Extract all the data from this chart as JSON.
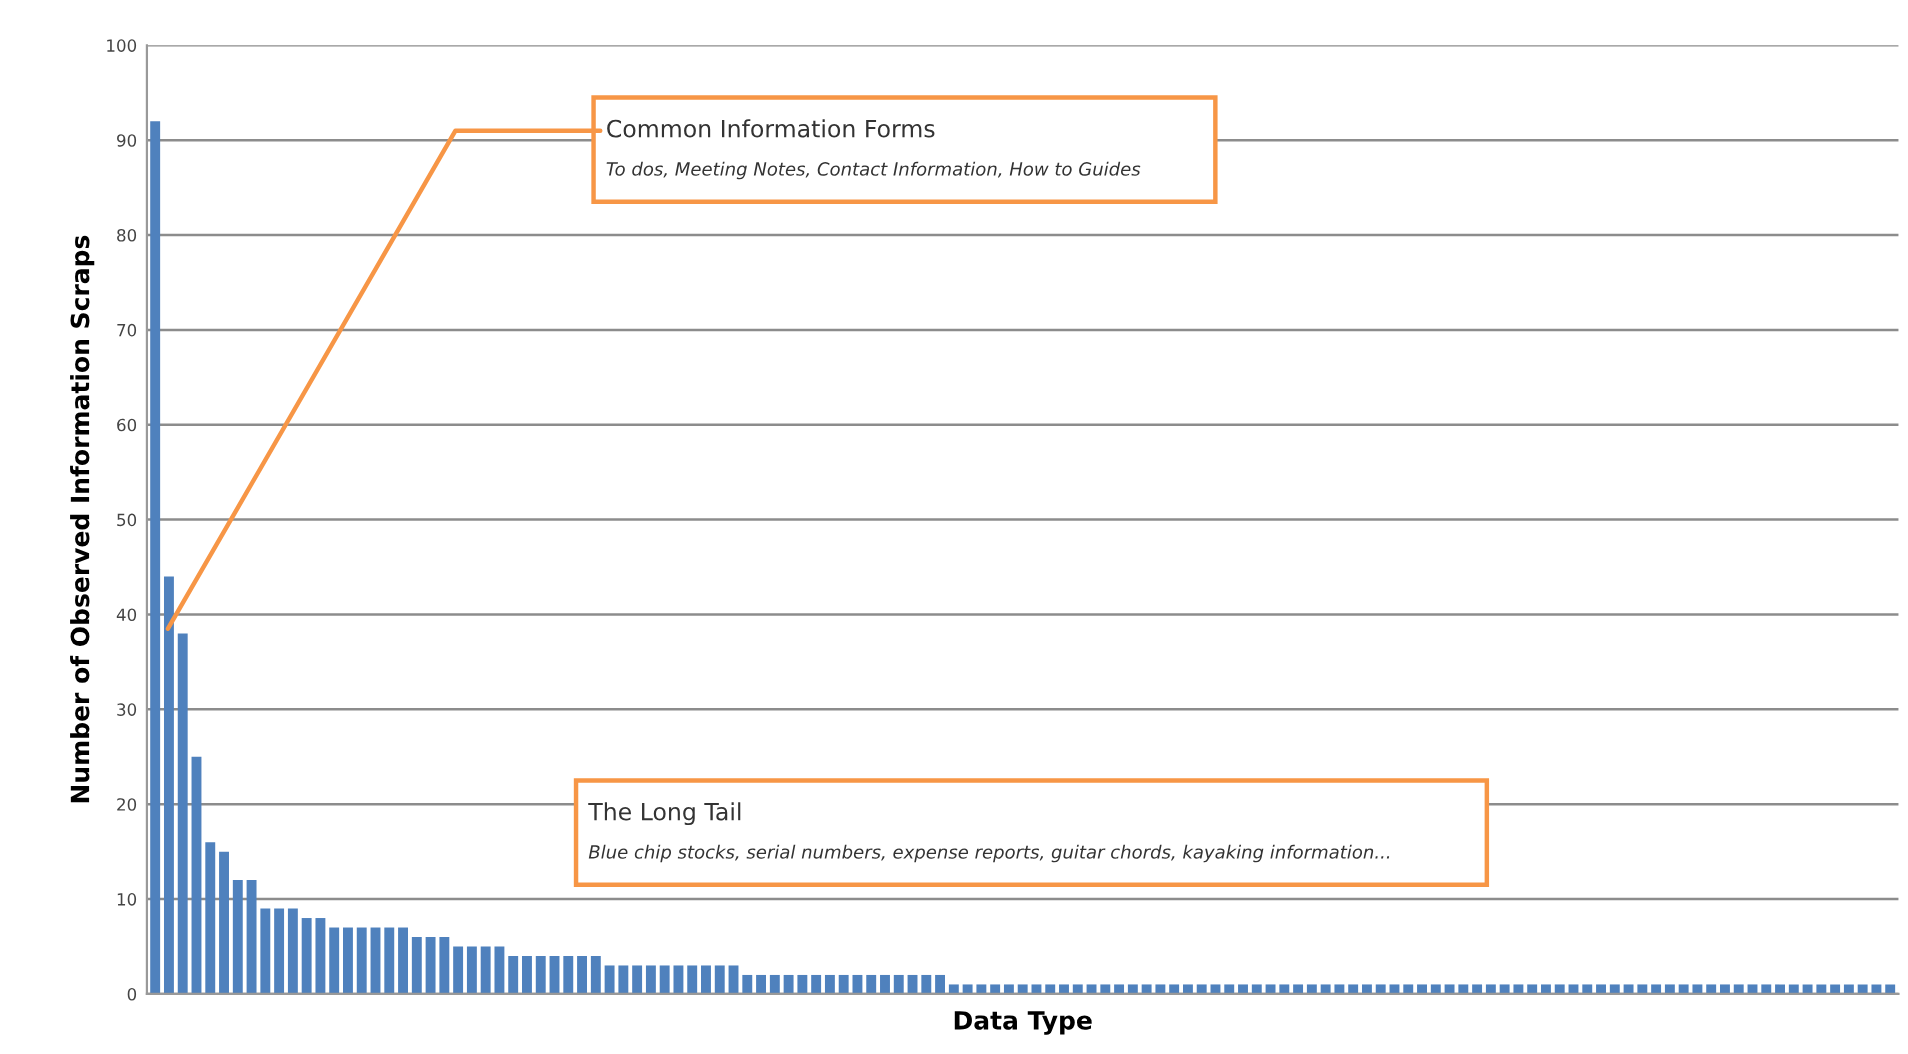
{
  "chart_data": {
    "type": "bar",
    "xlabel": "Data Type",
    "ylabel": "Number of Observed Information Scraps",
    "categories": [
      null,
      null,
      null,
      null,
      null,
      null,
      null,
      null,
      null,
      null,
      null,
      null,
      null,
      null,
      null,
      null,
      null,
      null,
      null,
      null,
      null,
      null,
      null,
      null,
      null,
      null,
      null,
      null,
      null,
      null,
      null,
      null,
      null,
      null,
      null,
      null,
      null,
      null,
      null,
      null,
      null,
      null,
      null,
      null,
      null,
      null,
      null,
      null,
      null,
      null,
      null,
      null,
      null,
      null,
      null,
      null,
      null,
      null,
      null,
      null,
      null,
      null,
      null,
      null,
      null,
      null,
      null,
      null,
      null,
      null,
      null,
      null,
      null,
      null,
      null,
      null,
      null,
      null,
      null,
      null,
      null,
      null,
      null,
      null,
      null,
      null,
      null,
      null,
      null,
      null,
      null,
      null,
      null,
      null,
      null,
      null,
      null,
      null,
      null,
      null,
      null,
      null,
      null,
      null,
      null,
      null,
      null,
      null,
      null,
      null,
      null,
      null,
      null,
      null,
      null,
      null,
      null,
      null,
      null,
      null,
      null,
      null,
      null,
      null,
      null,
      null,
      null
    ],
    "values": [
      92,
      44,
      38,
      25,
      16,
      15,
      12,
      12,
      9,
      9,
      9,
      8,
      8,
      7,
      7,
      7,
      7,
      7,
      7,
      6,
      6,
      6,
      5,
      5,
      5,
      5,
      4,
      4,
      4,
      4,
      4,
      4,
      4,
      3,
      3,
      3,
      3,
      3,
      3,
      3,
      3,
      3,
      3,
      2,
      2,
      2,
      2,
      2,
      2,
      2,
      2,
      2,
      2,
      2,
      2,
      2,
      2,
      2,
      1,
      1,
      1,
      1,
      1,
      1,
      1,
      1,
      1,
      1,
      1,
      1,
      1,
      1,
      1,
      1,
      1,
      1,
      1,
      1,
      1,
      1,
      1,
      1,
      1,
      1,
      1,
      1,
      1,
      1,
      1,
      1,
      1,
      1,
      1,
      1,
      1,
      1,
      1,
      1,
      1,
      1,
      1,
      1,
      1,
      1,
      1,
      1,
      1,
      1,
      1,
      1,
      1,
      1,
      1,
      1,
      1,
      1,
      1,
      1,
      1,
      1,
      1,
      1,
      1,
      1,
      1,
      1,
      1
    ],
    "color": "#4f81bd",
    "ylim": [
      0,
      100
    ],
    "yticks": [
      0,
      10,
      20,
      30,
      40,
      50,
      60,
      70,
      80,
      90,
      100
    ],
    "grid": "y",
    "tick_labels": "y",
    "annotations": [
      "Common Information Forms",
      "To dos, Meeting Notes, Contact Information, How to Guides",
      "The Long Tail",
      "Blue chip stocks, serial numbers, expense reports, guitar chords, kayaking information..."
    ]
  }
}
